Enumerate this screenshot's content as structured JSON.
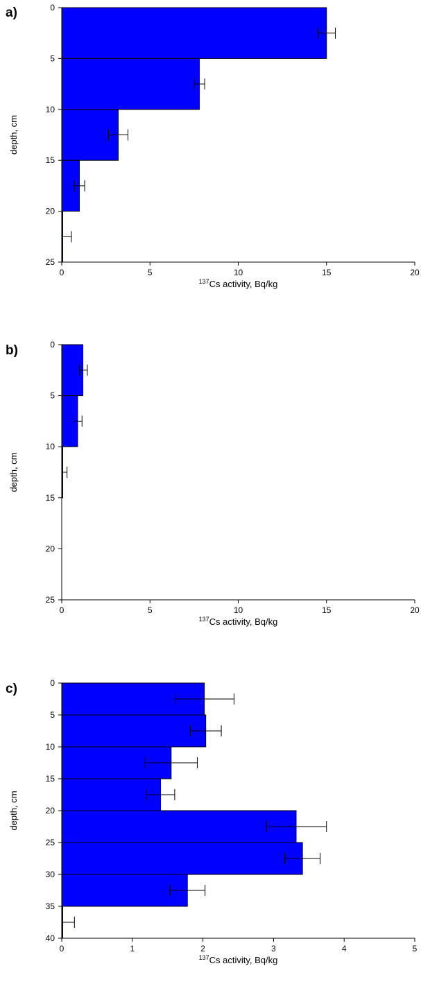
{
  "chart_data": [
    {
      "type": "bar",
      "orientation": "horizontal",
      "panel_label": "a)",
      "xlabel_sup": "137",
      "xlabel_main": "Cs activity, Bq/kg",
      "ylabel": "depth, cm",
      "xlim": [
        0,
        20
      ],
      "ylim": [
        0,
        25
      ],
      "x_ticks": [
        "0",
        "5",
        "10",
        "15",
        "20"
      ],
      "y_ticks": [
        "0",
        "5",
        "10",
        "15",
        "20",
        "25"
      ],
      "bar_color": "#0000FF",
      "bars": [
        {
          "depth_from": 0,
          "depth_to": 5,
          "value": 15.0,
          "error_low": 14.5,
          "error_high": 15.5
        },
        {
          "depth_from": 5,
          "depth_to": 10,
          "value": 7.8,
          "error_low": 7.5,
          "error_high": 8.1
        },
        {
          "depth_from": 10,
          "depth_to": 15,
          "value": 3.2,
          "error_low": 2.65,
          "error_high": 3.75
        },
        {
          "depth_from": 15,
          "depth_to": 20,
          "value": 1.0,
          "error_low": 0.7,
          "error_high": 1.3
        },
        {
          "depth_from": 20,
          "depth_to": 25,
          "value": 0.05,
          "error_low": 0.05,
          "error_high": 0.55
        }
      ]
    },
    {
      "type": "bar",
      "orientation": "horizontal",
      "panel_label": "b)",
      "xlabel_sup": "137",
      "xlabel_main": "Cs activity, Bq/kg",
      "ylabel": "depth, cm",
      "xlim": [
        0,
        20
      ],
      "ylim": [
        0,
        25
      ],
      "x_ticks": [
        "0",
        "5",
        "10",
        "15",
        "20"
      ],
      "y_ticks": [
        "0",
        "5",
        "10",
        "15",
        "20",
        "25"
      ],
      "bar_color": "#0000FF",
      "bars": [
        {
          "depth_from": 0,
          "depth_to": 5,
          "value": 1.2,
          "error_low": 1.0,
          "error_high": 1.45
        },
        {
          "depth_from": 5,
          "depth_to": 10,
          "value": 0.9,
          "error_low": 0.65,
          "error_high": 1.15
        },
        {
          "depth_from": 10,
          "depth_to": 15,
          "value": 0.0,
          "error_low": 0.0,
          "error_high": 0.3
        }
      ]
    },
    {
      "type": "bar",
      "orientation": "horizontal",
      "panel_label": "c)",
      "xlabel_sup": "137",
      "xlabel_main": "Cs activity, Bq/kg",
      "ylabel": "depth, cm",
      "xlim": [
        0,
        5
      ],
      "ylim": [
        0,
        40
      ],
      "x_ticks": [
        "0",
        "1",
        "2",
        "3",
        "4",
        "5"
      ],
      "y_ticks": [
        "0",
        "5",
        "10",
        "15",
        "20",
        "25",
        "30",
        "35",
        "40"
      ],
      "bar_color": "#0000FF",
      "bars": [
        {
          "depth_from": 0,
          "depth_to": 5,
          "value": 2.02,
          "error_low": 1.6,
          "error_high": 2.44
        },
        {
          "depth_from": 5,
          "depth_to": 10,
          "value": 2.04,
          "error_low": 1.82,
          "error_high": 2.26
        },
        {
          "depth_from": 10,
          "depth_to": 15,
          "value": 1.55,
          "error_low": 1.18,
          "error_high": 1.92
        },
        {
          "depth_from": 15,
          "depth_to": 20,
          "value": 1.4,
          "error_low": 1.2,
          "error_high": 1.6
        },
        {
          "depth_from": 20,
          "depth_to": 25,
          "value": 3.32,
          "error_low": 2.9,
          "error_high": 3.75
        },
        {
          "depth_from": 25,
          "depth_to": 30,
          "value": 3.41,
          "error_low": 3.16,
          "error_high": 3.66
        },
        {
          "depth_from": 30,
          "depth_to": 35,
          "value": 1.78,
          "error_low": 1.53,
          "error_high": 2.03
        },
        {
          "depth_from": 35,
          "depth_to": 40,
          "value": 0.0,
          "error_low": 0.0,
          "error_high": 0.18
        }
      ]
    }
  ]
}
